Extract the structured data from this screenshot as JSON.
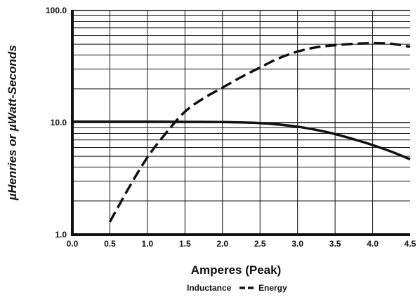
{
  "chart_data": {
    "type": "line",
    "xlabel": "Amperes (Peak)",
    "ylabel": "µHenries or  µWatt-Seconds",
    "xlim": [
      0.0,
      4.5
    ],
    "ylim": [
      1.0,
      100.0
    ],
    "y_scale": "log",
    "grid": true,
    "legend_position": "bottom",
    "x_ticks": [
      "0.0",
      "0.5",
      "1.0",
      "1.5",
      "2.0",
      "2.5",
      "3.0",
      "3.5",
      "4.0",
      "4.5"
    ],
    "y_ticks": [
      "1.0",
      "10.0",
      "100.0"
    ],
    "series": [
      {
        "name": "Inductance",
        "style": "solid",
        "color": "#111111",
        "x": [
          0.0,
          0.5,
          1.0,
          1.5,
          2.0,
          2.5,
          2.75,
          3.0,
          3.25,
          3.5,
          3.75,
          4.0,
          4.25,
          4.5
        ],
        "y": [
          10.2,
          10.2,
          10.2,
          10.15,
          10.1,
          9.9,
          9.6,
          9.2,
          8.6,
          7.9,
          7.1,
          6.3,
          5.5,
          4.7
        ]
      },
      {
        "name": "Energy",
        "style": "dashed",
        "color": "#111111",
        "x": [
          0.5,
          0.75,
          1.0,
          1.25,
          1.5,
          1.75,
          2.0,
          2.25,
          2.5,
          2.75,
          3.0,
          3.25,
          3.5,
          3.75,
          4.0,
          4.25,
          4.5
        ],
        "y": [
          1.3,
          2.6,
          4.9,
          8.1,
          12.5,
          16.5,
          20.5,
          25.5,
          31.0,
          37.5,
          43.0,
          47.0,
          49.0,
          50.5,
          51.0,
          50.5,
          47.5
        ]
      }
    ]
  }
}
